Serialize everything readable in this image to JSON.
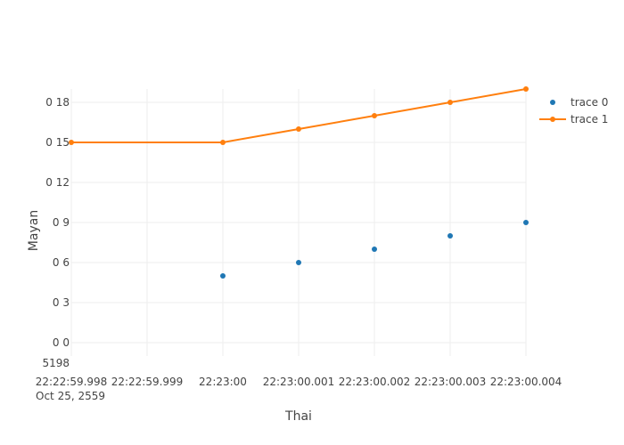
{
  "chart_data": {
    "type": "line",
    "title": "",
    "xlabel": "Thai",
    "ylabel": "Mayan",
    "x_tick_labels": [
      "22:22:59.998",
      "22:22:59.999",
      "22:23:00",
      "22:23:00.001",
      "22:23:00.002",
      "22:23:00.003",
      "22:23:00.004"
    ],
    "x_date_label": "Oct 25, 2559",
    "y_ticks": [
      0,
      3,
      6,
      9,
      12,
      15,
      18
    ],
    "y_tick_labels": [
      "0 0",
      "0 3",
      "0 6",
      "0 9",
      "0 12",
      "0 15",
      "0 18"
    ],
    "y_extra_label": "5198",
    "xlim": [
      "22:22:59.998",
      "22:23:00.004"
    ],
    "ylim": [
      -1,
      19
    ],
    "grid": true,
    "legend": "right",
    "series": [
      {
        "name": "trace 0",
        "mode": "markers",
        "color": "#1f77b4",
        "x": [
          "22:23:00",
          "22:23:00.001",
          "22:23:00.002",
          "22:23:00.003",
          "22:23:00.004"
        ],
        "values": [
          5,
          6,
          7,
          8,
          9
        ]
      },
      {
        "name": "trace 1",
        "mode": "lines+markers",
        "color": "#ff7f0e",
        "x": [
          "22:22:59.998",
          "22:23:00",
          "22:23:00.001",
          "22:23:00.002",
          "22:23:00.003",
          "22:23:00.004"
        ],
        "values": [
          15,
          15,
          16,
          17,
          18,
          19
        ]
      }
    ]
  }
}
